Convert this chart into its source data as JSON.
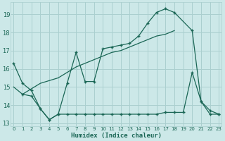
{
  "xlabel": "Humidex (Indice chaleur)",
  "bg_color": "#cce8e8",
  "grid_color": "#aacfcf",
  "line_color": "#1a6655",
  "xlim": [
    -0.3,
    23.3
  ],
  "ylim": [
    12.85,
    19.65
  ],
  "yticks": [
    13,
    14,
    15,
    16,
    17,
    18,
    19
  ],
  "xticks": [
    0,
    1,
    2,
    3,
    4,
    5,
    6,
    7,
    8,
    9,
    10,
    11,
    12,
    13,
    14,
    15,
    16,
    17,
    18,
    19,
    20,
    21,
    22,
    23
  ],
  "line1_x": [
    0,
    1,
    2,
    3,
    4,
    5,
    6,
    7,
    8,
    9,
    10,
    11,
    12,
    13,
    14,
    15,
    16,
    17,
    18,
    20,
    21,
    22,
    23
  ],
  "line1_y": [
    16.3,
    15.2,
    14.8,
    13.8,
    13.2,
    13.5,
    15.2,
    16.9,
    15.3,
    15.3,
    17.1,
    17.2,
    17.3,
    17.4,
    17.8,
    18.5,
    19.1,
    19.3,
    19.1,
    18.1,
    14.2,
    13.7,
    13.5
  ],
  "line2_x": [
    0,
    1,
    2,
    3,
    5,
    6,
    7,
    8,
    9,
    10,
    11,
    12,
    13,
    14,
    15,
    16,
    17,
    18
  ],
  "line2_y": [
    15.0,
    14.6,
    14.9,
    15.2,
    15.5,
    15.8,
    16.1,
    16.3,
    16.5,
    16.7,
    16.9,
    17.0,
    17.2,
    17.4,
    17.6,
    17.8,
    17.9,
    18.1
  ],
  "line3_x": [
    1,
    2,
    3,
    4,
    5,
    6,
    7,
    8,
    9,
    10,
    11,
    12,
    13,
    14,
    15,
    16,
    17,
    18,
    19,
    20,
    21,
    22,
    23
  ],
  "line3_y": [
    14.6,
    14.5,
    13.8,
    13.2,
    13.5,
    13.5,
    13.5,
    13.5,
    13.5,
    13.5,
    13.5,
    13.5,
    13.5,
    13.5,
    13.5,
    13.5,
    13.6,
    13.6,
    13.6,
    15.8,
    14.2,
    13.5,
    13.5
  ]
}
